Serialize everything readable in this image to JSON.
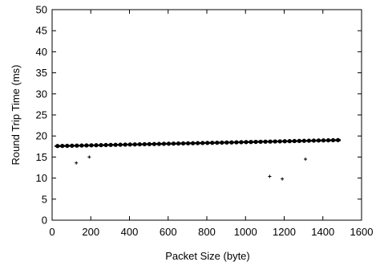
{
  "chart_data": {
    "type": "scatter",
    "title": "",
    "xlabel": "Packet Size (byte)",
    "ylabel": "Round Trip Time (ms)",
    "xlim": [
      0,
      1600
    ],
    "ylim": [
      0,
      50
    ],
    "x_ticks": [
      0,
      200,
      400,
      600,
      800,
      1000,
      1200,
      1400,
      1600
    ],
    "y_ticks": [
      0,
      5,
      10,
      15,
      20,
      25,
      30,
      35,
      40,
      45,
      50
    ],
    "grid": false,
    "legend": "none",
    "marker_color": "#000000",
    "dense_band": {
      "x_start": 28,
      "x_end": 1472,
      "x_step": 25,
      "y_center_start": 17.6,
      "y_center_end": 19.0,
      "y_spread": 1.0
    },
    "outliers": [
      {
        "x": 125,
        "y": 13.6
      },
      {
        "x": 192,
        "y": 15.0
      },
      {
        "x": 1125,
        "y": 10.4
      },
      {
        "x": 1190,
        "y": 9.8
      },
      {
        "x": 1310,
        "y": 14.5
      }
    ]
  }
}
